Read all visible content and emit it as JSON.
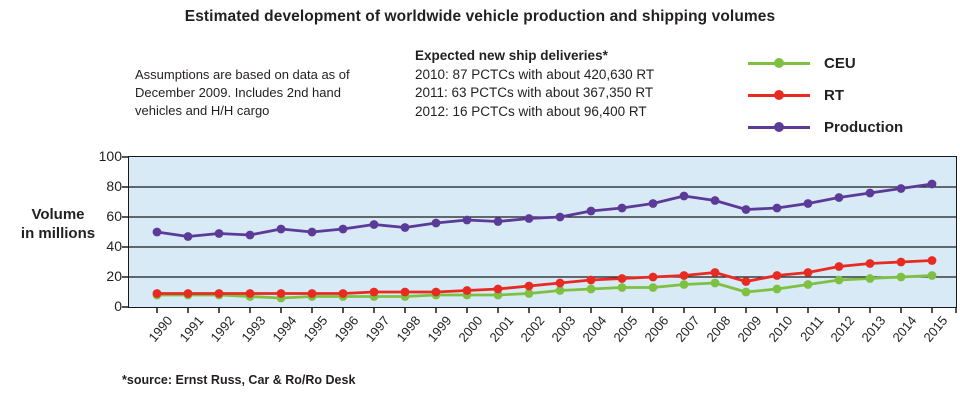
{
  "annotations": {
    "assumptions": [
      "Assumptions are based on data as of",
      "December 2009. Includes 2nd hand",
      "vehicles and H/H cargo"
    ],
    "deliveries_heading": "Expected new ship deliveries*",
    "deliveries_lines": [
      "2010: 87 PCTCs with about 420,630 RT",
      "2011: 63 PCTCs with about 367,350 RT",
      "2012: 16 PCTCs with about 96,400 RT"
    ]
  },
  "y_axis_title_line1": "Volume",
  "y_axis_title_line2": "in millions",
  "source_note": "*source: Ernst Russ, Car & Ro/Ro Desk",
  "colors": {
    "plot_background": "#D8EAF6",
    "grid": "#1a1a1a",
    "text": "#231f20"
  },
  "chart_data": {
    "type": "line",
    "title": "Estimated development of worldwide vehicle production and shipping volumes",
    "x": [
      1990,
      1991,
      1992,
      1993,
      1994,
      1995,
      1996,
      1997,
      1998,
      1999,
      2000,
      2001,
      2002,
      2003,
      2004,
      2005,
      2006,
      2007,
      2008,
      2009,
      2010,
      2011,
      2012,
      2013,
      2014,
      2015
    ],
    "series": [
      {
        "name": "CEU",
        "color": "#7EC142",
        "values": [
          8,
          8,
          8,
          7,
          6,
          7,
          7,
          7,
          7,
          8,
          8,
          8,
          9,
          11,
          12,
          13,
          13,
          15,
          16,
          10,
          12,
          15,
          18,
          19,
          20,
          21
        ]
      },
      {
        "name": "RT",
        "color": "#E72A22",
        "values": [
          9,
          9,
          9,
          9,
          9,
          9,
          9,
          10,
          10,
          10,
          11,
          12,
          14,
          16,
          18,
          19,
          20,
          21,
          23,
          17,
          21,
          23,
          27,
          29,
          30,
          31
        ]
      },
      {
        "name": "Production",
        "color": "#5B3B97",
        "values": [
          50,
          47,
          49,
          48,
          52,
          50,
          52,
          55,
          53,
          56,
          58,
          57,
          59,
          60,
          64,
          66,
          69,
          74,
          71,
          65,
          66,
          69,
          73,
          76,
          79,
          82
        ]
      }
    ],
    "xlabel": "",
    "ylabel": "Volume in millions",
    "ylim": [
      0,
      100
    ],
    "yticks": [
      0,
      20,
      40,
      60,
      80,
      100
    ],
    "grid": true,
    "grid_axis": "y",
    "plot_background": "#D8EAF6",
    "legend_position": "top-right"
  }
}
